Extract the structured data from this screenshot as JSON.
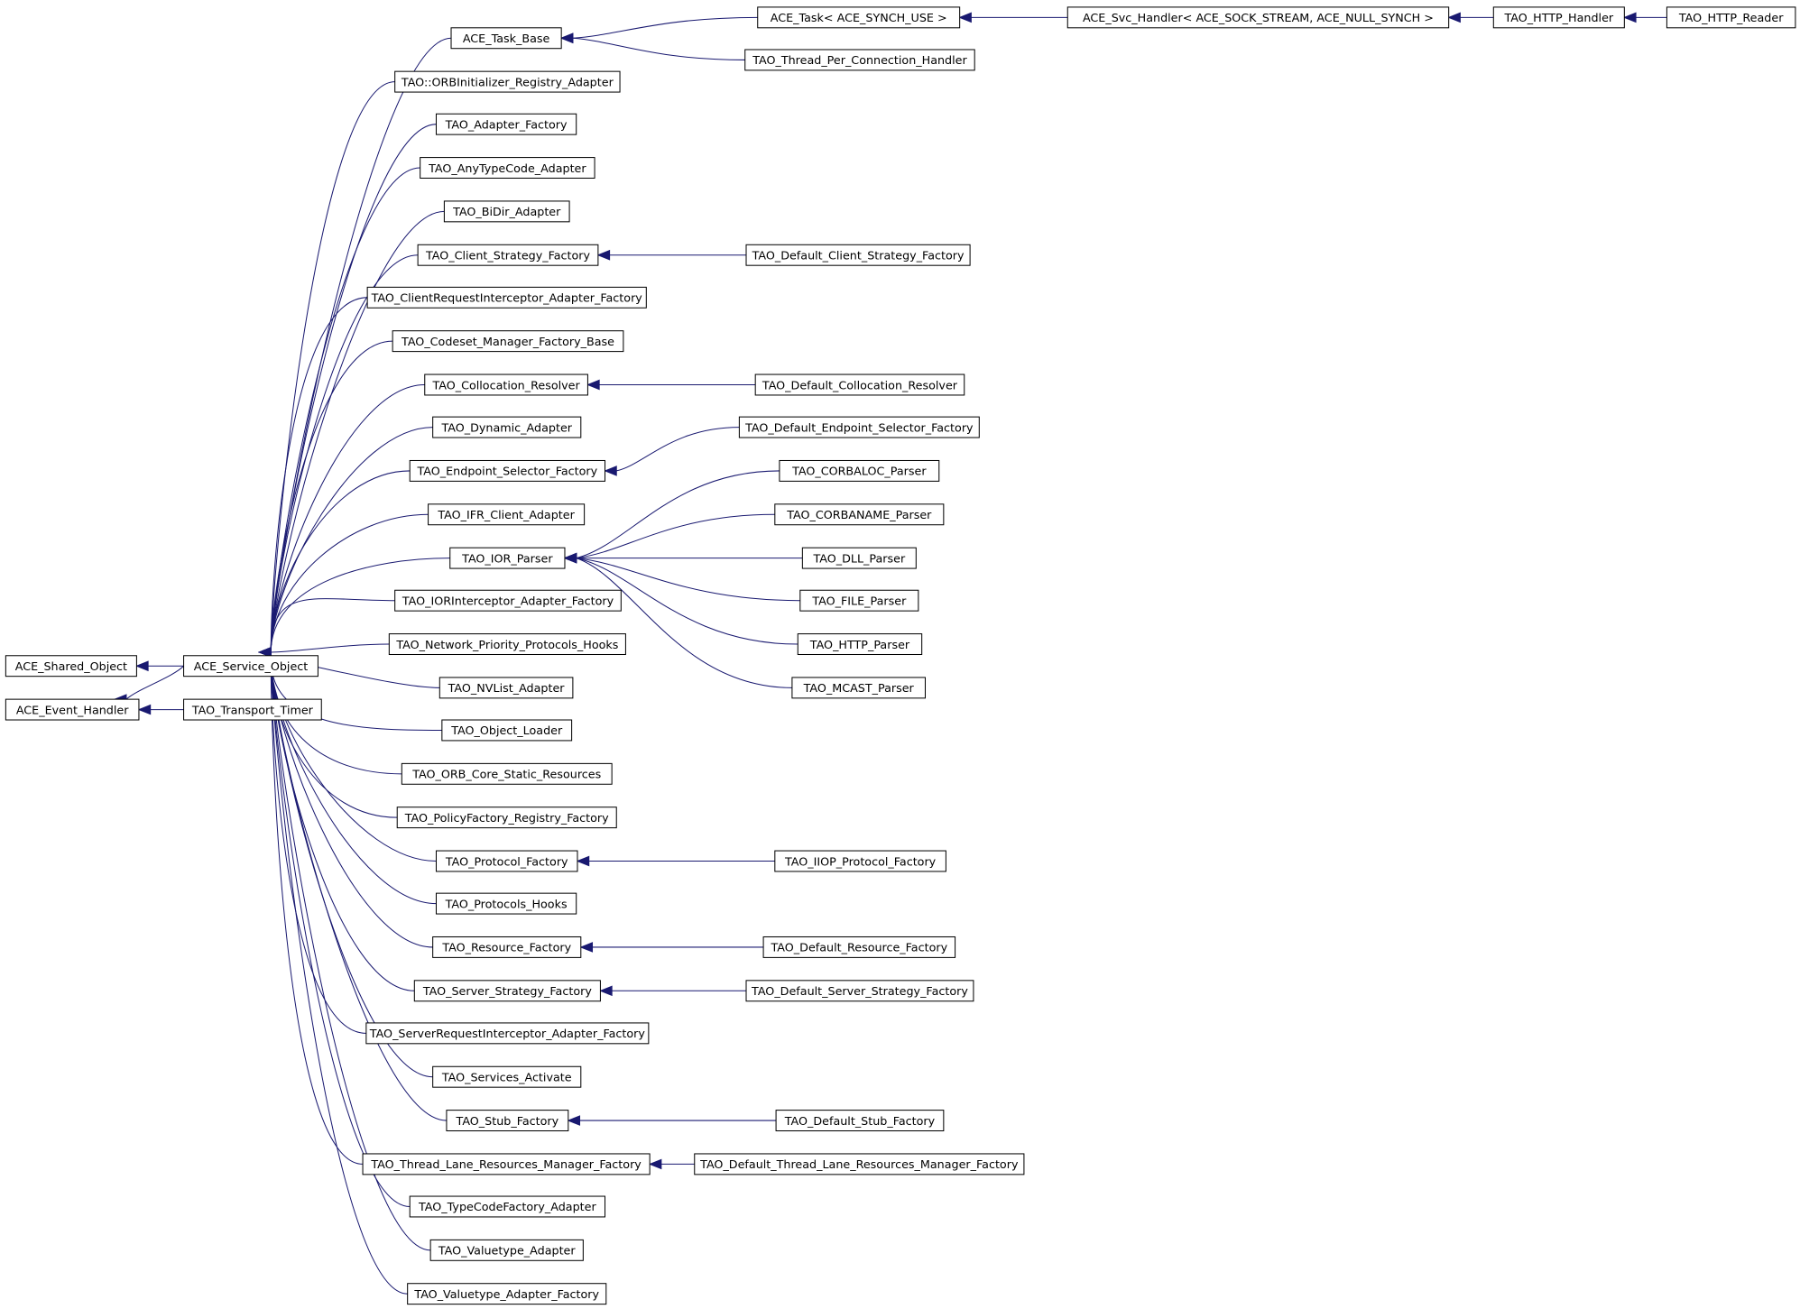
{
  "nodes": [
    {
      "label": "ACE_Shared_Object"
    },
    {
      "label": "ACE_Event_Handler"
    },
    {
      "label": "ACE_Service_Object"
    },
    {
      "label": "TAO_Transport_Timer"
    },
    {
      "label": "ACE_Task_Base"
    },
    {
      "label": "TAO::ORBInitializer_Registry_Adapter"
    },
    {
      "label": "TAO_Adapter_Factory"
    },
    {
      "label": "TAO_AnyTypeCode_Adapter"
    },
    {
      "label": "TAO_BiDir_Adapter"
    },
    {
      "label": "TAO_Client_Strategy_Factory"
    },
    {
      "label": "TAO_ClientRequestInterceptor_Adapter_Factory"
    },
    {
      "label": "TAO_Codeset_Manager_Factory_Base"
    },
    {
      "label": "TAO_Collocation_Resolver"
    },
    {
      "label": "TAO_Dynamic_Adapter"
    },
    {
      "label": "TAO_Endpoint_Selector_Factory"
    },
    {
      "label": "TAO_IFR_Client_Adapter"
    },
    {
      "label": "TAO_IOR_Parser"
    },
    {
      "label": "TAO_IORInterceptor_Adapter_Factory"
    },
    {
      "label": "TAO_Network_Priority_Protocols_Hooks"
    },
    {
      "label": "TAO_NVList_Adapter"
    },
    {
      "label": "TAO_Object_Loader"
    },
    {
      "label": "TAO_ORB_Core_Static_Resources"
    },
    {
      "label": "TAO_PolicyFactory_Registry_Factory"
    },
    {
      "label": "TAO_Protocol_Factory"
    },
    {
      "label": "TAO_Protocols_Hooks"
    },
    {
      "label": "TAO_Resource_Factory"
    },
    {
      "label": "TAO_Server_Strategy_Factory"
    },
    {
      "label": "TAO_ServerRequestInterceptor_Adapter_Factory"
    },
    {
      "label": "TAO_Services_Activate"
    },
    {
      "label": "TAO_Stub_Factory"
    },
    {
      "label": "TAO_Thread_Lane_Resources_Manager_Factory"
    },
    {
      "label": "TAO_TypeCodeFactory_Adapter"
    },
    {
      "label": "TAO_Valuetype_Adapter"
    },
    {
      "label": "TAO_Valuetype_Adapter_Factory"
    },
    {
      "label": "ACE_Task< ACE_SYNCH_USE >"
    },
    {
      "label": "TAO_Thread_Per_Connection_Handler"
    },
    {
      "label": "ACE_Svc_Handler< ACE_SOCK_STREAM, ACE_NULL_SYNCH >"
    },
    {
      "label": "TAO_HTTP_Handler"
    },
    {
      "label": "TAO_HTTP_Reader"
    },
    {
      "label": "TAO_Default_Client_Strategy_Factory"
    },
    {
      "label": "TAO_Default_Collocation_Resolver"
    },
    {
      "label": "TAO_Default_Endpoint_Selector_Factory"
    },
    {
      "label": "TAO_CORBALOC_Parser"
    },
    {
      "label": "TAO_CORBANAME_Parser"
    },
    {
      "label": "TAO_DLL_Parser"
    },
    {
      "label": "TAO_FILE_Parser"
    },
    {
      "label": "TAO_HTTP_Parser"
    },
    {
      "label": "TAO_MCAST_Parser"
    },
    {
      "label": "TAO_IIOP_Protocol_Factory"
    },
    {
      "label": "TAO_Default_Resource_Factory"
    },
    {
      "label": "TAO_Default_Server_Strategy_Factory"
    },
    {
      "label": "TAO_Default_Stub_Factory"
    },
    {
      "label": "TAO_Default_Thread_Lane_Resources_Manager_Factory"
    }
  ]
}
